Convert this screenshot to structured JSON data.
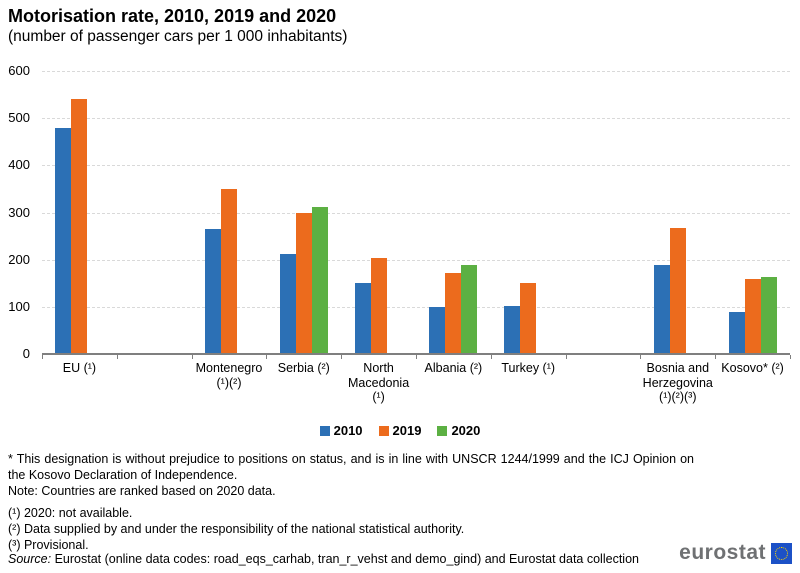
{
  "page": {
    "title": "Motorisation rate, 2010, 2019 and 2020",
    "subtitle": "(number of passenger cars per 1 000 inhabitants)"
  },
  "chart_data": {
    "type": "bar",
    "title": "Motorisation rate, 2010, 2019 and 2020",
    "subtitle": "(number of passenger cars per 1 000 inhabitants)",
    "xlabel": "",
    "ylabel": "",
    "ylim": [
      0,
      600
    ],
    "ytick_step": 100,
    "grid": "horizontal-dashed",
    "legend_position": "bottom-center",
    "categories": [
      "EU (¹)",
      "",
      "Montenegro (¹)(²)",
      "Serbia (²)",
      "North Macedonia (¹)",
      "Albania (²)",
      "Turkey (¹)",
      "",
      "Bosnia and Herzegovina (¹)(²)(³)",
      "Kosovo* (²)"
    ],
    "category_label_lines": [
      [
        "EU (¹)"
      ],
      [],
      [
        "Montenegro",
        "(¹)(²)"
      ],
      [
        "Serbia (²)"
      ],
      [
        "North",
        "Macedonia",
        "(¹)"
      ],
      [
        "Albania (²)"
      ],
      [
        "Turkey (¹)"
      ],
      [],
      [
        "Bosnia and",
        "Herzegovina",
        "(¹)(²)(³)"
      ],
      [
        "Kosovo* (²)"
      ]
    ],
    "series": [
      {
        "name": "2010",
        "color": "#2C70B5",
        "values": [
          480,
          null,
          265,
          213,
          151,
          99,
          101,
          null,
          188,
          89
        ]
      },
      {
        "name": "2019",
        "color": "#EC6B1D",
        "values": [
          541,
          null,
          350,
          299,
          204,
          172,
          150,
          null,
          268,
          160
        ]
      },
      {
        "name": "2020",
        "color": "#5CB043",
        "values": [
          null,
          null,
          null,
          312,
          null,
          189,
          null,
          null,
          null,
          163
        ]
      }
    ]
  },
  "notes": [
    "* This designation is without prejudice to positions on status, and is in line with UNSCR 1244/1999 and the ICJ Opinion on the Kosovo Declaration of Independence.",
    "Note: Countries are ranked based on 2020 data.",
    "(¹) 2020: not available.",
    "(²) Data supplied by and under the responsibility of the national statistical authority.",
    "(³) Provisional."
  ],
  "source": {
    "label": "Source:",
    "text": " Eurostat (online data codes: road_eqs_carhab, tran_r_vehst and demo_gind) and Eurostat data collection"
  },
  "logo": {
    "text": "eurostat"
  },
  "colors": {
    "grid": "#D9D9D9",
    "axis": "#7F7F7F",
    "logo_text": "#6F7173",
    "flag_blue": "#1C51C7",
    "flag_stars": "#FFD600"
  }
}
